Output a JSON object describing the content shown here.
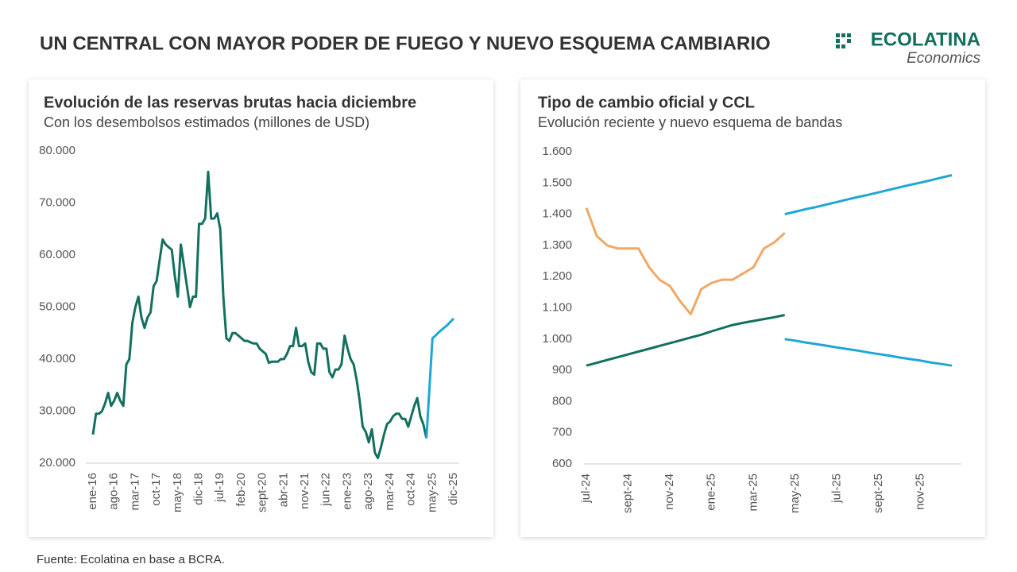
{
  "header": {
    "title": "UN CENTRAL CON MAYOR PODER DE FUEGO Y NUEVO ESQUEMA CAMBIARIO",
    "logo": "ECOLATINA",
    "logo_sub": "Economics"
  },
  "source": "Fuente: Ecolatina en base a BCRA.",
  "chart_data": [
    {
      "type": "line",
      "title": "Evolución de las reservas brutas hacia diciembre",
      "subtitle": "Con los desembolsos estimados (millones de USD)",
      "categories": [
        "ene-16",
        null,
        null,
        null,
        null,
        null,
        null,
        "ago-16",
        null,
        null,
        null,
        null,
        null,
        null,
        "mar-17",
        null,
        null,
        null,
        null,
        null,
        null,
        "oct-17",
        null,
        null,
        null,
        null,
        null,
        null,
        "may-18",
        null,
        null,
        null,
        null,
        null,
        null,
        "dic-18",
        null,
        null,
        null,
        null,
        null,
        null,
        "jul-19",
        null,
        null,
        null,
        null,
        null,
        null,
        "feb-20",
        null,
        null,
        null,
        null,
        null,
        null,
        "sept-20",
        null,
        null,
        null,
        null,
        null,
        null,
        "abr-21",
        null,
        null,
        null,
        null,
        null,
        null,
        "nov-21",
        null,
        null,
        null,
        null,
        null,
        null,
        "jun-22",
        null,
        null,
        null,
        null,
        null,
        null,
        "ene-23",
        null,
        null,
        null,
        null,
        null,
        null,
        "ago-23",
        null,
        null,
        null,
        null,
        null,
        null,
        "mar-24",
        null,
        null,
        null,
        null,
        null,
        null,
        "oct-24",
        null,
        null,
        null,
        null,
        null,
        null,
        "may-25",
        null,
        null,
        null,
        null,
        null,
        null,
        "dic-25"
      ],
      "series": [
        {
          "color": "#13705f",
          "values": [
            25500,
            29500,
            29500,
            30000,
            31500,
            33500,
            31000,
            32000,
            33500,
            32000,
            31000,
            39000,
            40000,
            47000,
            50000,
            52000,
            48000,
            46000,
            48000,
            49000,
            54000,
            55000,
            59000,
            63000,
            62000,
            61500,
            61000,
            56000,
            52000,
            62000,
            58000,
            54000,
            50000,
            52000,
            52000,
            66000,
            66000,
            67000,
            76000,
            67000,
            67000,
            68000,
            65000,
            52000,
            44000,
            43500,
            45000,
            45000,
            44500,
            44000,
            43500,
            43500,
            43200,
            43000,
            43000,
            42000,
            41500,
            41000,
            39300,
            39500,
            39500,
            39500,
            40000,
            40000,
            41000,
            42500,
            42500,
            46000,
            42500,
            42500,
            43000,
            39500,
            37500,
            37000,
            43000,
            43000,
            42000,
            42000,
            37500,
            36500,
            38000,
            38000,
            39000,
            44500,
            42000,
            40000,
            39000,
            36000,
            32000,
            27000,
            26000,
            24000,
            26500,
            22000,
            21000,
            23000,
            25500,
            27500,
            28000,
            29000,
            29500,
            29500,
            28500,
            28500,
            27000,
            29000,
            31000,
            32500,
            29000,
            27500,
            24800,
            null,
            null,
            null,
            null,
            null,
            null,
            null,
            null,
            null
          ]
        },
        {
          "color": "#1ea7d6",
          "values": [
            null,
            null,
            null,
            null,
            null,
            null,
            null,
            null,
            null,
            null,
            null,
            null,
            null,
            null,
            null,
            null,
            null,
            null,
            null,
            null,
            null,
            null,
            null,
            null,
            null,
            null,
            null,
            null,
            null,
            null,
            null,
            null,
            null,
            null,
            null,
            null,
            null,
            null,
            null,
            null,
            null,
            null,
            null,
            null,
            null,
            null,
            null,
            null,
            null,
            null,
            null,
            null,
            null,
            null,
            null,
            null,
            null,
            null,
            null,
            null,
            null,
            null,
            null,
            null,
            null,
            null,
            null,
            null,
            null,
            null,
            null,
            null,
            null,
            null,
            null,
            null,
            null,
            null,
            null,
            null,
            null,
            null,
            null,
            null,
            null,
            null,
            null,
            null,
            null,
            null,
            null,
            null,
            null,
            null,
            null,
            null,
            null,
            null,
            null,
            null,
            null,
            null,
            null,
            null,
            null,
            null,
            null,
            null,
            null,
            null,
            24800,
            34400,
            44000,
            44500,
            45100,
            45600,
            46100,
            46600,
            47200,
            47800
          ]
        }
      ],
      "ylim": [
        20000,
        80000
      ],
      "yticks": [
        {
          "value": 20000,
          "label": "20.000"
        },
        {
          "value": 30000,
          "label": "30.000"
        },
        {
          "value": 40000,
          "label": "40.000"
        },
        {
          "value": 50000,
          "label": "50.000"
        },
        {
          "value": 60000,
          "label": "60.000"
        },
        {
          "value": 70000,
          "label": "70.000"
        },
        {
          "value": 80000,
          "label": "80.000"
        }
      ],
      "grid": false
    },
    {
      "type": "line",
      "title": "Tipo de cambio oficial y CCL",
      "subtitle": "Evolución reciente y nuevo esquema de bandas",
      "categories": [
        "jul-24",
        null,
        null,
        null,
        "sept-24",
        null,
        null,
        null,
        "nov-24",
        null,
        null,
        null,
        "ene-25",
        null,
        null,
        null,
        "mar-25",
        null,
        null,
        null,
        "may-25",
        null,
        null,
        null,
        "jul-25",
        null,
        null,
        null,
        "sept-25",
        null,
        null,
        null,
        "nov-25",
        null,
        null,
        null
      ],
      "series": [
        {
          "color": "#f0a866",
          "values": [
            1420,
            1330,
            1300,
            1290,
            1290,
            1290,
            1230,
            1190,
            1170,
            1120,
            1080,
            1160,
            1180,
            1190,
            1190,
            1210,
            1230,
            1290,
            1310,
            1340,
            null,
            null,
            null,
            null,
            null,
            null,
            null,
            null,
            null,
            null,
            null,
            null,
            null,
            null,
            null,
            null
          ]
        },
        {
          "color": "#13705f",
          "values": [
            915,
            924,
            933,
            942,
            951,
            960,
            969,
            978,
            987,
            996,
            1005,
            1014,
            1025,
            1035,
            1045,
            1052,
            1058,
            1064,
            1070,
            1077,
            null,
            null,
            null,
            null,
            null,
            null,
            null,
            null,
            null,
            null,
            null,
            null,
            null,
            null,
            null,
            null
          ]
        },
        {
          "color": "#1ea7d6",
          "values": [
            null,
            null,
            null,
            null,
            null,
            null,
            null,
            null,
            null,
            null,
            null,
            null,
            null,
            null,
            null,
            null,
            null,
            null,
            null,
            1400,
            1408,
            1416,
            1423,
            1431,
            1439,
            1447,
            1455,
            1462,
            1470,
            1478,
            1486,
            1494,
            1501,
            1509,
            1517,
            1525
          ]
        },
        {
          "color": "#1ea7d6",
          "values": [
            null,
            null,
            null,
            null,
            null,
            null,
            null,
            null,
            null,
            null,
            null,
            null,
            null,
            null,
            null,
            null,
            null,
            null,
            null,
            1000,
            995,
            989,
            984,
            979,
            973,
            968,
            963,
            957,
            952,
            947,
            941,
            936,
            931,
            925,
            920,
            915
          ]
        }
      ],
      "ylim": [
        600,
        1600
      ],
      "yticks": [
        600,
        700,
        800,
        900,
        {
          "value": 1000,
          "label": "1.000"
        },
        {
          "value": 1100,
          "label": "1.100"
        },
        {
          "value": 1200,
          "label": "1.200"
        },
        {
          "value": 1300,
          "label": "1.300"
        },
        {
          "value": 1400,
          "label": "1.400"
        },
        {
          "value": 1500,
          "label": "1.500"
        },
        {
          "value": 1600,
          "label": "1.600"
        }
      ],
      "grid": false
    }
  ]
}
